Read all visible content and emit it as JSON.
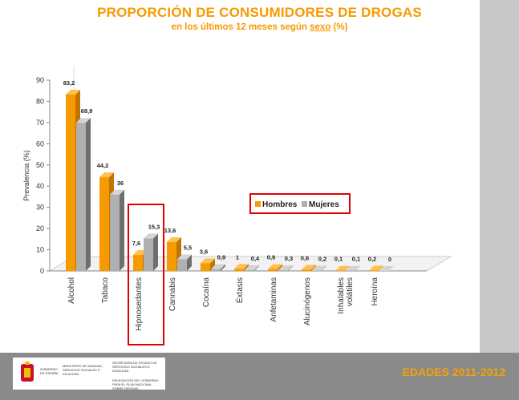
{
  "header": {
    "title": "PROPORCIÓN DE CONSUMIDORES DE DROGAS",
    "subtitle_pre": "en los últimos 12 meses según ",
    "subtitle_u": "sexo",
    "subtitle_post": " (%)"
  },
  "footer": {
    "edades": "EDADES 2011-2012",
    "logo_gov": "GOBIERNO DE ESPAÑA",
    "logo_ministry": "MINISTERIO DE SANIDAD, SERVICIOS SOCIALES E IGUALDAD",
    "logo_sec": "SECRETARÍA DE ESTADO DE SERVICIOS SOCIALES E IGUALDAD",
    "logo_del": "DELEGACIÓN DEL GOBIERNO PARA EL PLAN NACIONAL SOBRE DROGAS"
  },
  "colors": {
    "hombres": "#f59a00",
    "mujeres": "#b0b0b0",
    "title": "#f59a00",
    "highlight": "#e00000"
  },
  "chart_data": {
    "type": "bar",
    "ylabel": "Prevalencia (%)",
    "ylim": [
      0,
      90
    ],
    "yticks": [
      0,
      10,
      20,
      30,
      40,
      50,
      60,
      70,
      80,
      90
    ],
    "categories": [
      "Alcohol",
      "Tabaco",
      "Hipnosedantes",
      "Cannabis",
      "Cocaína",
      "Éxtasis",
      "Anfetaminas",
      "Alucinógenos",
      "Inhalables volátiles",
      "Heroína"
    ],
    "category_lines": [
      [
        "Alcohol"
      ],
      [
        "Tabaco"
      ],
      [
        "Hipnosedantes"
      ],
      [
        "Cannabis"
      ],
      [
        "Cocaína"
      ],
      [
        "Éxtasis"
      ],
      [
        "Anfetaminas"
      ],
      [
        "Alucinógenos"
      ],
      [
        "Inhalables",
        "volátiles"
      ],
      [
        "Heroína"
      ]
    ],
    "series": [
      {
        "name": "Hombres",
        "values": [
          83.2,
          44.2,
          7.6,
          13.6,
          3.6,
          1,
          0.9,
          0.6,
          0.1,
          0.2
        ]
      },
      {
        "name": "Mujeres",
        "values": [
          69.9,
          36,
          15.3,
          5.5,
          0.9,
          0.4,
          0.3,
          0.2,
          0.1,
          0
        ]
      }
    ],
    "data_labels": [
      [
        "83,2",
        "44,2",
        "7,6",
        "13,6",
        "3,6",
        "1",
        "0,9",
        "0,6",
        "0,1",
        "0,2"
      ],
      [
        "69,9",
        "36",
        "15,3",
        "5,5",
        "0,9",
        "0,4",
        "0,3",
        "0,2",
        "0,1",
        "0"
      ]
    ],
    "legend_position": "center-right",
    "highlighted_category": "Hipnosedantes",
    "grid": false
  }
}
